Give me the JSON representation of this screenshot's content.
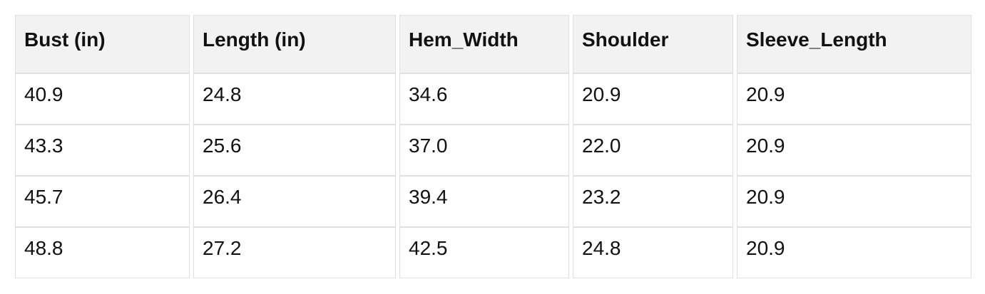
{
  "table": {
    "columns": [
      "Bust (in)",
      "Length (in)",
      "Hem_Width",
      "Shoulder",
      "Sleeve_Length"
    ],
    "rows": [
      [
        "40.9",
        "24.8",
        "34.6",
        "20.9",
        "20.9"
      ],
      [
        "43.3",
        "25.6",
        "37.0",
        "22.0",
        "20.9"
      ],
      [
        "45.7",
        "26.4",
        "39.4",
        "23.2",
        "20.9"
      ],
      [
        "48.8",
        "27.2",
        "42.5",
        "24.8",
        "20.9"
      ]
    ]
  },
  "chart_data": {
    "type": "table",
    "title": "",
    "columns": [
      "Bust (in)",
      "Length (in)",
      "Hem_Width",
      "Shoulder",
      "Sleeve_Length"
    ],
    "rows": [
      [
        40.9,
        24.8,
        34.6,
        20.9,
        20.9
      ],
      [
        43.3,
        25.6,
        37.0,
        22.0,
        20.9
      ],
      [
        45.7,
        26.4,
        39.4,
        23.2,
        20.9
      ],
      [
        48.8,
        27.2,
        42.5,
        24.8,
        20.9
      ]
    ]
  },
  "colors": {
    "header_bg": "#f2f2f2",
    "row_bg": "#ffffff",
    "border": "#e0e0e0",
    "text": "#111111"
  }
}
